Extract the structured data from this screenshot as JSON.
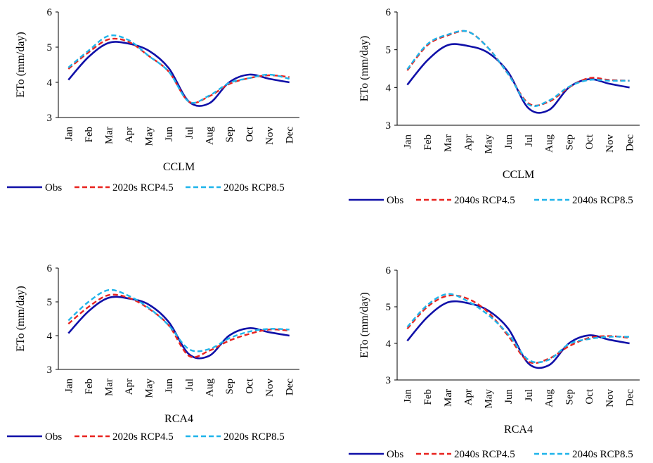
{
  "colors": {
    "obs": "#1010a8",
    "rcp45": "#e8231f",
    "rcp85": "#1fb4ea",
    "axis": "#000000"
  },
  "chart_data": [
    {
      "type": "line",
      "model": "CCLM",
      "ylabel": "ETo (mm/day)",
      "ylim": [
        3,
        6
      ],
      "yticks": [
        3,
        4,
        5,
        6
      ],
      "categories": [
        "Jan",
        "Feb",
        "Mar",
        "Apr",
        "May",
        "Jun",
        "Jul",
        "Aug",
        "Sep",
        "Oct",
        "Nov",
        "Dec"
      ],
      "legend_position": "bottom",
      "series": [
        {
          "name": "Obs",
          "style": "solid",
          "values": [
            4.07,
            4.72,
            5.12,
            5.1,
            4.9,
            4.4,
            3.45,
            3.4,
            4.0,
            4.22,
            4.1,
            4.0
          ]
        },
        {
          "name": "2020s RCP4.5",
          "style": "dashed",
          "values": [
            4.38,
            4.85,
            5.22,
            5.15,
            4.75,
            4.3,
            3.45,
            3.6,
            3.95,
            4.12,
            4.2,
            4.15
          ]
        },
        {
          "name": "2020s RCP8.5",
          "style": "dashed",
          "values": [
            4.42,
            4.9,
            5.32,
            5.2,
            4.75,
            4.3,
            3.45,
            3.62,
            3.98,
            4.12,
            4.22,
            4.1
          ]
        }
      ]
    },
    {
      "type": "line",
      "model": "CCLM",
      "ylabel": "ETo (mm/day)",
      "ylim": [
        3,
        6
      ],
      "yticks": [
        3,
        4,
        5,
        6
      ],
      "categories": [
        "Jan",
        "Feb",
        "Mar",
        "Apr",
        "May",
        "Jun",
        "Jul",
        "Aug",
        "Sep",
        "Oct",
        "Nov",
        "Dec"
      ],
      "legend_position": "bottom",
      "series": [
        {
          "name": "Obs",
          "style": "solid",
          "values": [
            4.07,
            4.72,
            5.12,
            5.1,
            4.92,
            4.4,
            3.45,
            3.4,
            4.0,
            4.22,
            4.1,
            4.0
          ]
        },
        {
          "name": "2040s RCP4.5",
          "style": "dashed",
          "values": [
            4.45,
            5.12,
            5.38,
            5.48,
            5.05,
            4.35,
            3.58,
            3.62,
            4.0,
            4.25,
            4.2,
            4.18
          ]
        },
        {
          "name": "2040s RCP8.5",
          "style": "dashed",
          "values": [
            4.48,
            5.15,
            5.4,
            5.48,
            5.05,
            4.35,
            3.55,
            3.65,
            4.02,
            4.2,
            4.18,
            4.18
          ]
        }
      ]
    },
    {
      "type": "line",
      "model": "RCA4",
      "ylabel": "ETo (mm/day)",
      "ylim": [
        3,
        6
      ],
      "yticks": [
        3,
        4,
        5,
        6
      ],
      "categories": [
        "Jan",
        "Feb",
        "Mar",
        "Apr",
        "May",
        "Jun",
        "Jul",
        "Aug",
        "Sep",
        "Oct",
        "Nov",
        "Dec"
      ],
      "legend_position": "bottom",
      "series": [
        {
          "name": "Obs",
          "style": "solid",
          "values": [
            4.07,
            4.72,
            5.12,
            5.1,
            4.92,
            4.4,
            3.45,
            3.4,
            4.0,
            4.22,
            4.1,
            4.0
          ]
        },
        {
          "name": "2020s RCP4.5",
          "style": "dashed",
          "values": [
            4.35,
            4.85,
            5.2,
            5.12,
            4.8,
            4.3,
            3.4,
            3.55,
            3.85,
            4.05,
            4.18,
            4.15
          ]
        },
        {
          "name": "2020s RCP8.5",
          "style": "dashed",
          "values": [
            4.45,
            5.0,
            5.35,
            5.18,
            4.82,
            4.3,
            3.6,
            3.6,
            3.92,
            4.12,
            4.2,
            4.18
          ]
        }
      ]
    },
    {
      "type": "line",
      "model": "RCA4",
      "ylabel": "ETo (mm/day)",
      "ylim": [
        3,
        6
      ],
      "yticks": [
        3,
        4,
        5,
        6
      ],
      "categories": [
        "Jan",
        "Feb",
        "Mar",
        "Apr",
        "May",
        "Jun",
        "Jul",
        "Aug",
        "Sep",
        "Oct",
        "Nov",
        "Dec"
      ],
      "legend_position": "bottom",
      "series": [
        {
          "name": "Obs",
          "style": "solid",
          "values": [
            4.07,
            4.72,
            5.12,
            5.1,
            4.9,
            4.4,
            3.45,
            3.4,
            4.0,
            4.22,
            4.1,
            4.0
          ]
        },
        {
          "name": "2040s RCP4.5",
          "style": "dashed",
          "values": [
            4.4,
            5.0,
            5.3,
            5.22,
            4.85,
            4.2,
            3.5,
            3.58,
            3.92,
            4.15,
            4.2,
            4.15
          ]
        },
        {
          "name": "2040s RCP8.5",
          "style": "dashed",
          "values": [
            4.45,
            5.05,
            5.35,
            5.15,
            4.78,
            4.25,
            3.55,
            3.55,
            3.98,
            4.12,
            4.18,
            4.18
          ]
        }
      ]
    }
  ]
}
